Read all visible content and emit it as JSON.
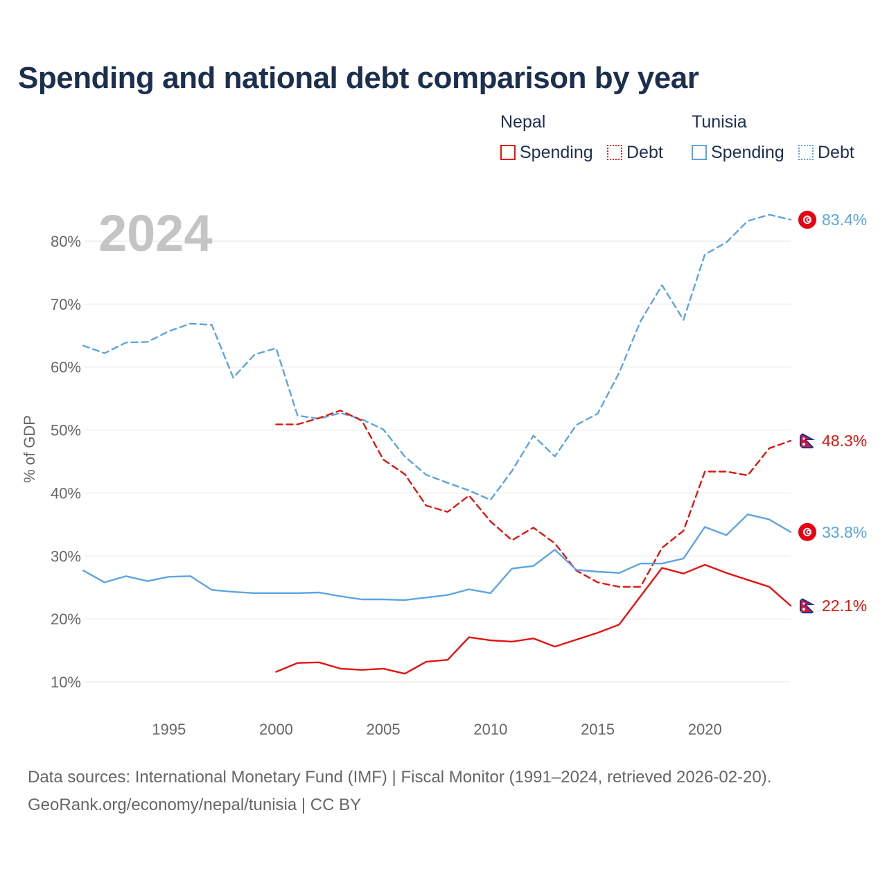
{
  "title": "Spending and national debt comparison by year",
  "legend": {
    "groups": [
      {
        "name": "Nepal",
        "color": "#e3140f",
        "items": [
          {
            "label": "Spending",
            "style": "solid"
          },
          {
            "label": "Debt",
            "style": "dotted"
          }
        ]
      },
      {
        "name": "Tunisia",
        "color": "#5ca4e2",
        "items": [
          {
            "label": "Spending",
            "style": "solid"
          },
          {
            "label": "Debt",
            "style": "dotted"
          }
        ]
      }
    ]
  },
  "footer": {
    "line1": "Data sources: International Monetary Fund (IMF) | Fiscal Monitor (1991–2024, retrieved 2026-02-20).",
    "line2": "GeoRank.org/economy/nepal/tunisia | CC BY"
  },
  "chart_data": {
    "type": "line",
    "title": "Spending and national debt comparison by year",
    "current_year_label": "2024",
    "xlabel": "",
    "ylabel": "% of GDP",
    "xlim": [
      1991,
      2024
    ],
    "ylim": [
      5,
      86
    ],
    "xticks": [
      1995,
      2000,
      2005,
      2010,
      2015,
      2020
    ],
    "xtick_labels": [
      "1995",
      "2000",
      "2005",
      "2010",
      "2015",
      "2020"
    ],
    "yticks": [
      10,
      20,
      30,
      40,
      50,
      60,
      70,
      80
    ],
    "ytick_labels": [
      "10%",
      "20%",
      "30%",
      "40%",
      "50%",
      "60%",
      "70%",
      "80%"
    ],
    "grid": true,
    "series": [
      {
        "name": "Tunisia Debt",
        "country": "Tunisia",
        "metric": "Debt",
        "dash": "dashed",
        "color": "#5ca4e2",
        "end_label": "83.4%",
        "flag": "tunisia-flag-icon",
        "x": [
          1991,
          1992,
          1993,
          1994,
          1995,
          1996,
          1997,
          1998,
          1999,
          2000,
          2001,
          2002,
          2003,
          2004,
          2005,
          2006,
          2007,
          2008,
          2009,
          2010,
          2011,
          2012,
          2013,
          2014,
          2015,
          2016,
          2017,
          2018,
          2019,
          2020,
          2021,
          2022,
          2023,
          2024
        ],
        "values": [
          63.4,
          62.2,
          63.9,
          64.0,
          65.7,
          66.9,
          66.7,
          58.3,
          62.0,
          63.0,
          52.3,
          51.8,
          52.7,
          51.7,
          50.1,
          45.8,
          42.9,
          41.6,
          40.4,
          38.9,
          43.5,
          49.1,
          45.8,
          50.8,
          52.6,
          59.1,
          67.3,
          73.0,
          67.5,
          77.9,
          79.8,
          83.2,
          84.2,
          83.4
        ]
      },
      {
        "name": "Nepal Debt",
        "country": "Nepal",
        "metric": "Debt",
        "dash": "dashed",
        "color": "#e3140f",
        "end_label": "48.3%",
        "flag": "nepal-flag-icon",
        "x": [
          2000,
          2001,
          2002,
          2003,
          2004,
          2005,
          2006,
          2007,
          2008,
          2009,
          2010,
          2011,
          2012,
          2013,
          2014,
          2015,
          2016,
          2017,
          2018,
          2019,
          2020,
          2021,
          2022,
          2023,
          2024
        ],
        "values": [
          50.9,
          50.9,
          51.9,
          53.1,
          51.5,
          45.3,
          43.0,
          38.0,
          37.0,
          39.6,
          35.5,
          32.5,
          34.5,
          32.0,
          27.7,
          25.8,
          25.1,
          25.1,
          31.3,
          34.0,
          43.4,
          43.4,
          42.8,
          47.1,
          48.3
        ]
      },
      {
        "name": "Tunisia Spending",
        "country": "Tunisia",
        "metric": "Spending",
        "dash": "solid",
        "color": "#5ca4e2",
        "end_label": "33.8%",
        "flag": "tunisia-flag-icon",
        "x": [
          1991,
          1992,
          1993,
          1994,
          1995,
          1996,
          1997,
          1998,
          1999,
          2000,
          2001,
          2002,
          2003,
          2004,
          2005,
          2006,
          2007,
          2008,
          2009,
          2010,
          2011,
          2012,
          2013,
          2014,
          2015,
          2016,
          2017,
          2018,
          2019,
          2020,
          2021,
          2022,
          2023,
          2024
        ],
        "values": [
          27.7,
          25.8,
          26.8,
          26.0,
          26.7,
          26.8,
          24.6,
          24.3,
          24.1,
          24.1,
          24.1,
          24.2,
          23.6,
          23.1,
          23.1,
          23.0,
          23.4,
          23.8,
          24.7,
          24.1,
          28.0,
          28.4,
          31.0,
          27.8,
          27.5,
          27.3,
          28.8,
          28.8,
          29.6,
          34.6,
          33.3,
          36.6,
          35.8,
          33.8
        ]
      },
      {
        "name": "Nepal Spending",
        "country": "Nepal",
        "metric": "Spending",
        "dash": "solid",
        "color": "#e3140f",
        "end_label": "22.1%",
        "flag": "nepal-flag-icon",
        "x": [
          2000,
          2001,
          2002,
          2003,
          2004,
          2005,
          2006,
          2007,
          2008,
          2009,
          2010,
          2011,
          2012,
          2013,
          2014,
          2015,
          2016,
          2017,
          2018,
          2019,
          2020,
          2021,
          2022,
          2023,
          2024
        ],
        "values": [
          11.6,
          13.0,
          13.1,
          12.1,
          11.9,
          12.1,
          11.3,
          13.2,
          13.5,
          17.1,
          16.6,
          16.4,
          16.9,
          15.6,
          16.7,
          17.8,
          19.1,
          23.6,
          28.1,
          27.2,
          28.6,
          27.3,
          26.2,
          25.1,
          22.1
        ]
      }
    ]
  }
}
